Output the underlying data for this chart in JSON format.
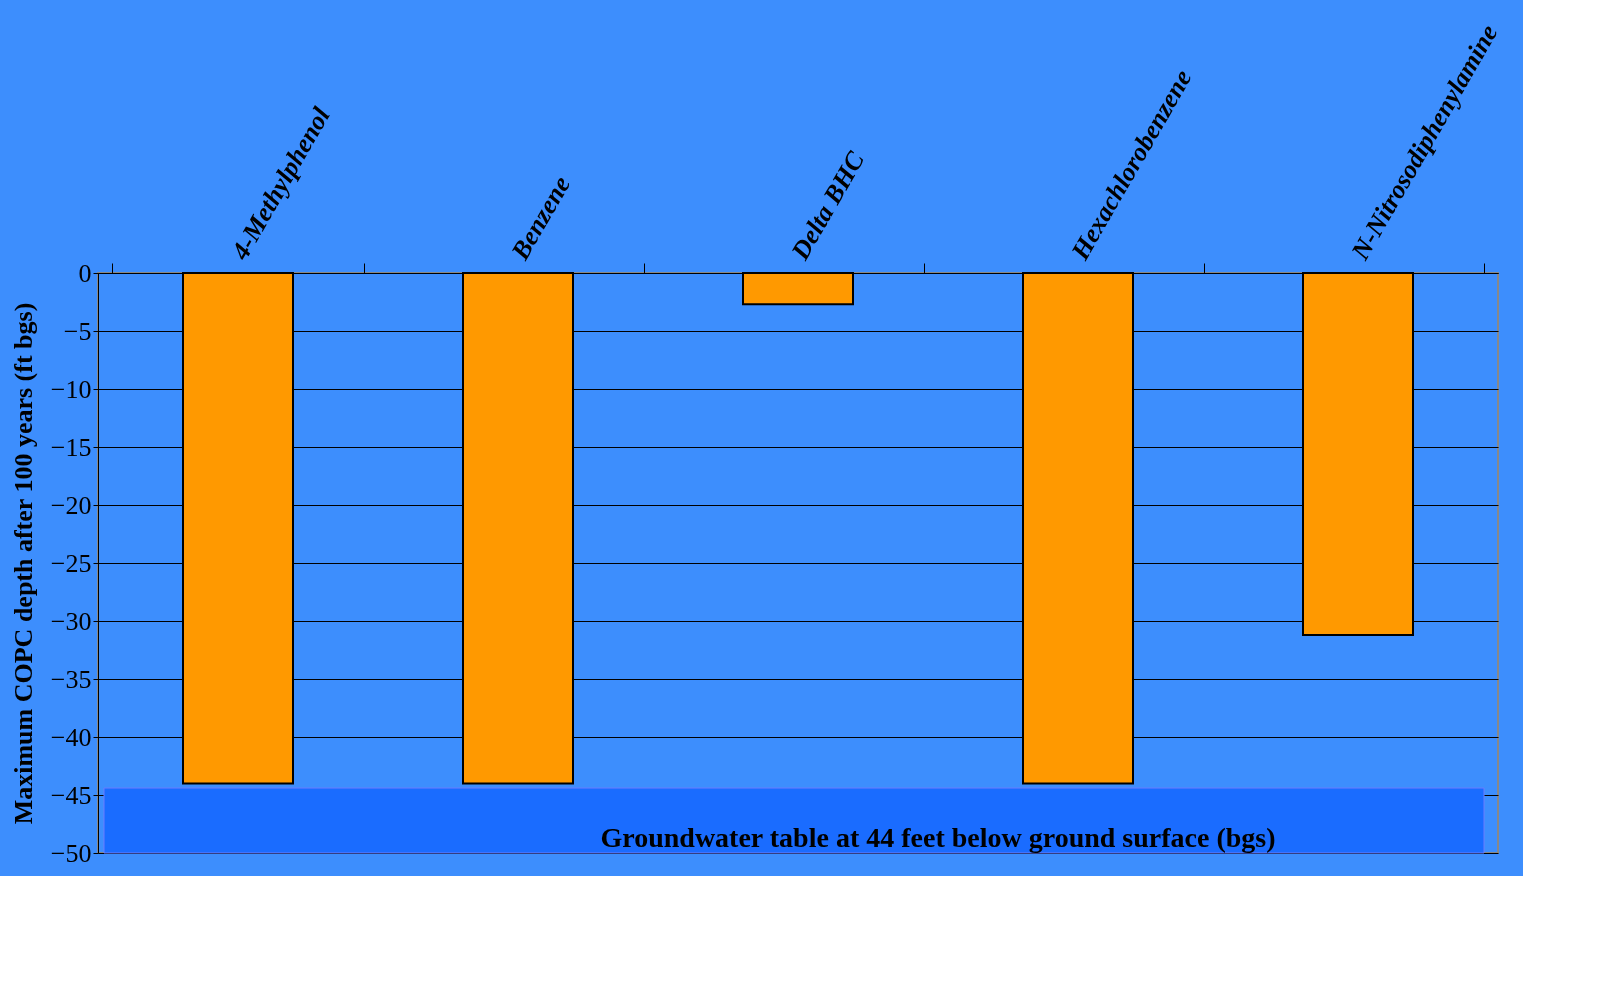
{
  "chart_data": {
    "type": "bar",
    "ylabel": "Maximum COPC depth after 100 years (ft bgs)",
    "categories": [
      "4-Methylphenol",
      "Benzene",
      "Delta BHC",
      "Hexachlorobenzene",
      "N-Nitrosodiphenylamine"
    ],
    "values": [
      -44,
      -44,
      -2.7,
      -44,
      -31.2
    ],
    "color": "#ff9900",
    "ylim": [
      -50,
      0
    ],
    "yticks": [
      -50,
      -45,
      -40,
      -35,
      -30,
      -25,
      -20,
      -15,
      -10,
      -5,
      0
    ],
    "grid": "y",
    "bands": [
      {
        "axis": "y",
        "from": -50,
        "to": -44.4,
        "label": "Groundwater table at 44 feet below ground surface (bgs)",
        "color": "#1a6cff"
      }
    ]
  }
}
